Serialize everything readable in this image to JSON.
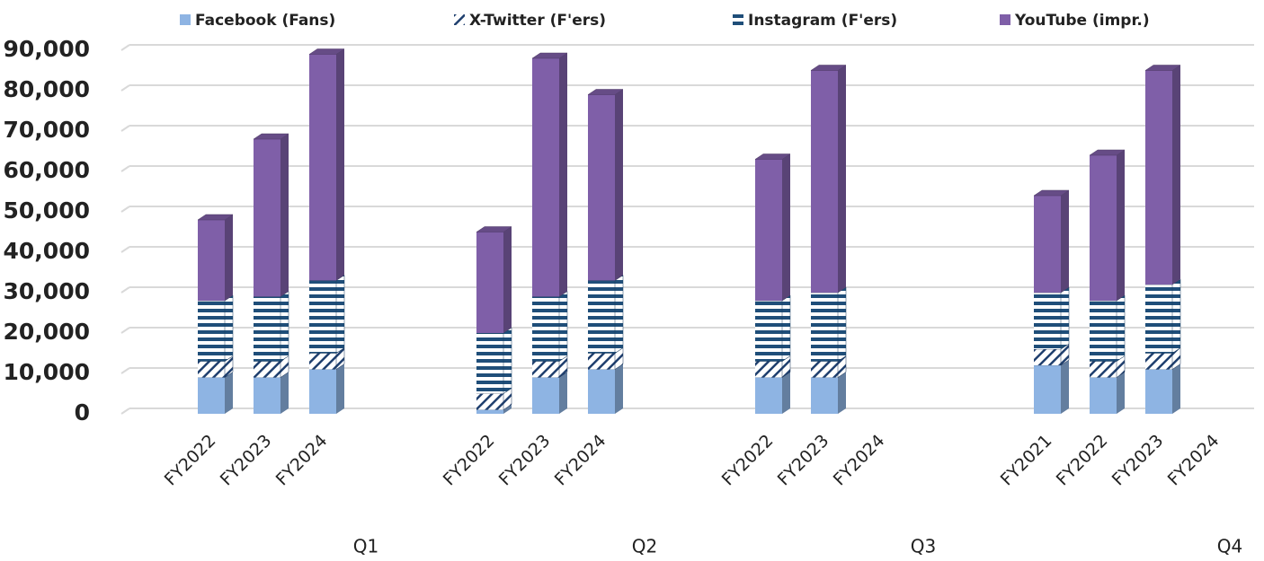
{
  "chart_data": {
    "type": "bar",
    "stacked": true,
    "groups": [
      {
        "name": "Q1",
        "categories": [
          "FY2022",
          "FY2023",
          "FY2024"
        ]
      },
      {
        "name": "Q2",
        "categories": [
          "FY2022",
          "FY2023",
          "FY2024"
        ]
      },
      {
        "name": "Q3",
        "categories": [
          "FY2022",
          "FY2023",
          "FY2024"
        ]
      },
      {
        "name": "Q4",
        "categories": [
          "FY2021",
          "FY2022",
          "FY2023",
          "FY2024"
        ]
      }
    ],
    "series": [
      {
        "name": "Facebook (Fans)",
        "color": "#8eb4e3",
        "pattern": "solid",
        "values": [
          9000,
          9000,
          11000,
          1000,
          9000,
          11000,
          9000,
          9000,
          null,
          12000,
          9000,
          11000,
          null
        ]
      },
      {
        "name": "X-Twitter (F'ers)",
        "color": "#1f3f6e",
        "pattern": "hatch",
        "values": [
          4000,
          4000,
          4000,
          4000,
          4000,
          4000,
          4000,
          4000,
          null,
          4000,
          4000,
          4000,
          null
        ]
      },
      {
        "name": "Instagram (F'ers)",
        "color": "#1f4e79",
        "pattern": "stripes",
        "values": [
          15000,
          16000,
          18000,
          15000,
          16000,
          18000,
          15000,
          17000,
          null,
          14000,
          15000,
          17000,
          null
        ]
      },
      {
        "name": "YouTube (impr.)",
        "color": "#7f5fa8",
        "pattern": "solid",
        "values": [
          20000,
          39000,
          56000,
          25000,
          59000,
          46000,
          35000,
          55000,
          null,
          24000,
          36000,
          53000,
          null
        ]
      }
    ],
    "ylim": [
      0,
      90000
    ],
    "yticks": [
      0,
      {
        "value": 10000,
        "label": "10,000"
      },
      {
        "value": 20000,
        "label": "20,000"
      },
      {
        "value": 30000,
        "label": "30,000"
      },
      {
        "value": 40000,
        "label": "40,000"
      },
      {
        "value": 50000,
        "label": "50,000"
      },
      {
        "value": 60000,
        "label": "60,000"
      },
      {
        "value": 70000,
        "label": "70,000"
      },
      {
        "value": 80000,
        "label": "80,000"
      },
      {
        "value": 90000,
        "label": "90,000"
      }
    ],
    "grid": true,
    "legend": "top"
  }
}
